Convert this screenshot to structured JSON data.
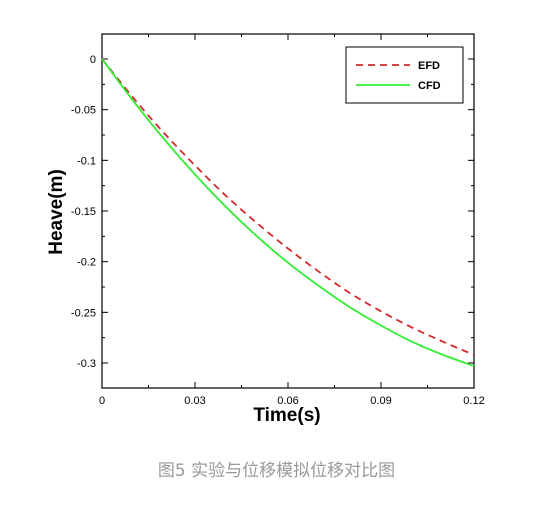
{
  "chart_data": {
    "type": "line",
    "xlabel": "Time(s)",
    "ylabel": "Heave(m)",
    "xlim": [
      0,
      0.12
    ],
    "ylim": [
      -0.32,
      0.01
    ],
    "x_ticks": [
      "0",
      "0.03",
      "0.06",
      "0.09",
      "0.12"
    ],
    "y_ticks": [
      "0",
      "-0.05",
      "-0.1",
      "-0.15",
      "-0.2",
      "-0.25",
      "-0.3"
    ],
    "x_tick_values": [
      0,
      0.03,
      0.06,
      0.09,
      0.12
    ],
    "y_tick_values": [
      0,
      -0.05,
      -0.1,
      -0.15,
      -0.2,
      -0.25,
      -0.3
    ],
    "legend_position": "top-right",
    "grid": false,
    "series": [
      {
        "name": "EFD",
        "color": "#d42a2a",
        "style": "dashed",
        "x": [
          0,
          0.01,
          0.02,
          0.03,
          0.04,
          0.05,
          0.06,
          0.07,
          0.08,
          0.09,
          0.1,
          0.11,
          0.12
        ],
        "y": [
          0,
          -0.038,
          -0.073,
          -0.105,
          -0.135,
          -0.162,
          -0.187,
          -0.21,
          -0.231,
          -0.249,
          -0.265,
          -0.279,
          -0.292
        ]
      },
      {
        "name": "CFD",
        "color": "#33ee33",
        "style": "solid",
        "x": [
          0,
          0.01,
          0.02,
          0.03,
          0.04,
          0.05,
          0.06,
          0.07,
          0.08,
          0.09,
          0.1,
          0.11,
          0.12
        ],
        "y": [
          0,
          -0.041,
          -0.079,
          -0.114,
          -0.146,
          -0.175,
          -0.201,
          -0.224,
          -0.245,
          -0.263,
          -0.279,
          -0.292,
          -0.303
        ]
      }
    ]
  },
  "caption": "图5 实验与位移模拟位移对比图"
}
